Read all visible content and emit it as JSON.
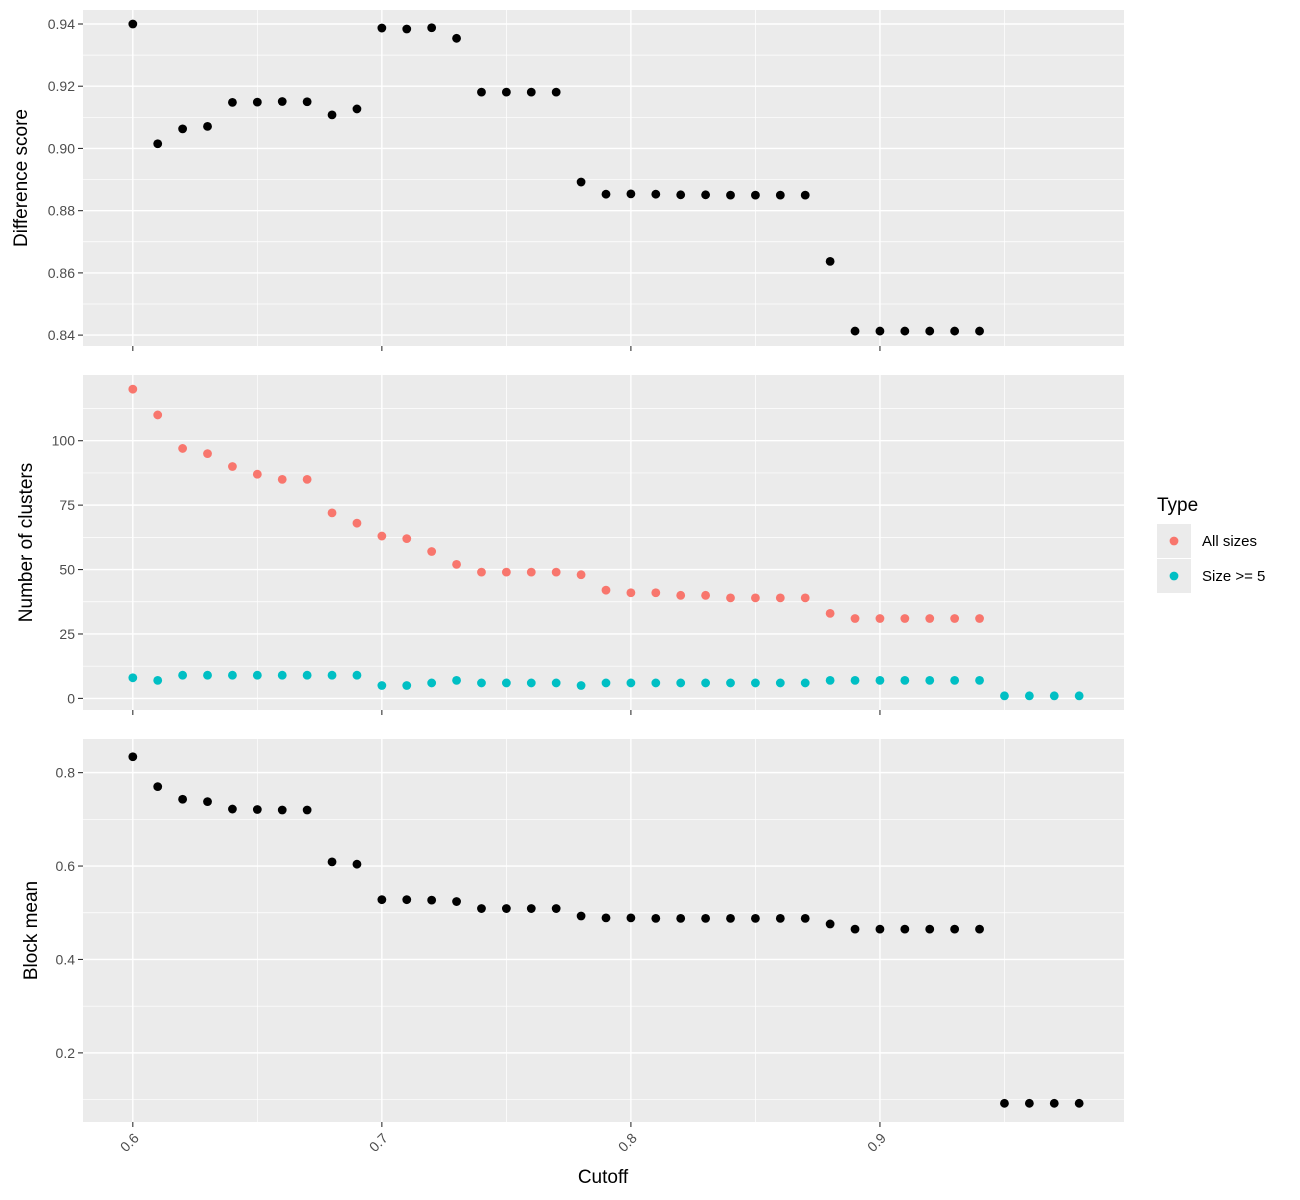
{
  "chart_data": [
    {
      "type": "scatter",
      "panel": "top",
      "ylabel": "Difference score",
      "xlim": [
        0.58,
        0.998
      ],
      "ylim": [
        0.8365,
        0.9445
      ],
      "yticks": [
        0.84,
        0.86,
        0.88,
        0.9,
        0.92,
        0.94
      ],
      "ytick_labels": [
        "0.84",
        "0.86",
        "0.88",
        "0.90",
        "0.92",
        "0.94"
      ],
      "color": "#000000",
      "points": [
        [
          0.6,
          0.94
        ],
        [
          0.61,
          0.9015
        ],
        [
          0.62,
          0.9063
        ],
        [
          0.63,
          0.9071
        ],
        [
          0.64,
          0.9148
        ],
        [
          0.65,
          0.9149
        ],
        [
          0.66,
          0.9151
        ],
        [
          0.67,
          0.915
        ],
        [
          0.68,
          0.9108
        ],
        [
          0.69,
          0.9127
        ],
        [
          0.7,
          0.9387
        ],
        [
          0.71,
          0.9384
        ],
        [
          0.72,
          0.9388
        ],
        [
          0.73,
          0.9354
        ],
        [
          0.74,
          0.9181
        ],
        [
          0.75,
          0.9181
        ],
        [
          0.76,
          0.9181
        ],
        [
          0.77,
          0.9181
        ],
        [
          0.78,
          0.8892
        ],
        [
          0.79,
          0.8853
        ],
        [
          0.8,
          0.8854
        ],
        [
          0.81,
          0.8853
        ],
        [
          0.82,
          0.8851
        ],
        [
          0.83,
          0.8851
        ],
        [
          0.84,
          0.885
        ],
        [
          0.85,
          0.885
        ],
        [
          0.86,
          0.885
        ],
        [
          0.87,
          0.885
        ],
        [
          0.88,
          0.8637
        ],
        [
          0.89,
          0.8413
        ],
        [
          0.9,
          0.8413
        ],
        [
          0.91,
          0.8413
        ],
        [
          0.92,
          0.8413
        ],
        [
          0.93,
          0.8413
        ],
        [
          0.94,
          0.8413
        ]
      ]
    },
    {
      "type": "scatter",
      "panel": "middle",
      "ylabel": "Number of clusters",
      "xlim": [
        0.58,
        0.998
      ],
      "ylim": [
        -4.5,
        125.5
      ],
      "yticks": [
        0,
        25,
        50,
        75,
        100
      ],
      "ytick_labels": [
        "0",
        "25",
        "50",
        "75",
        "100"
      ],
      "series": [
        {
          "name": "All sizes",
          "color": "#f8766d",
          "points": [
            [
              0.6,
              120
            ],
            [
              0.61,
              110
            ],
            [
              0.62,
              97
            ],
            [
              0.63,
              95
            ],
            [
              0.64,
              90
            ],
            [
              0.65,
              87
            ],
            [
              0.66,
              85
            ],
            [
              0.67,
              85
            ],
            [
              0.68,
              72
            ],
            [
              0.69,
              68
            ],
            [
              0.7,
              63
            ],
            [
              0.71,
              62
            ],
            [
              0.72,
              57
            ],
            [
              0.73,
              52
            ],
            [
              0.74,
              49
            ],
            [
              0.75,
              49
            ],
            [
              0.76,
              49
            ],
            [
              0.77,
              49
            ],
            [
              0.78,
              48
            ],
            [
              0.79,
              42
            ],
            [
              0.8,
              41
            ],
            [
              0.81,
              41
            ],
            [
              0.82,
              40
            ],
            [
              0.83,
              40
            ],
            [
              0.84,
              39
            ],
            [
              0.85,
              39
            ],
            [
              0.86,
              39
            ],
            [
              0.87,
              39
            ],
            [
              0.88,
              33
            ],
            [
              0.89,
              31
            ],
            [
              0.9,
              31
            ],
            [
              0.91,
              31
            ],
            [
              0.92,
              31
            ],
            [
              0.93,
              31
            ],
            [
              0.94,
              31
            ]
          ]
        },
        {
          "name": "Size >= 5",
          "color": "#00bfc4",
          "points": [
            [
              0.6,
              8
            ],
            [
              0.61,
              7
            ],
            [
              0.62,
              9
            ],
            [
              0.63,
              9
            ],
            [
              0.64,
              9
            ],
            [
              0.65,
              9
            ],
            [
              0.66,
              9
            ],
            [
              0.67,
              9
            ],
            [
              0.68,
              9
            ],
            [
              0.69,
              9
            ],
            [
              0.7,
              5
            ],
            [
              0.71,
              5
            ],
            [
              0.72,
              6
            ],
            [
              0.73,
              7
            ],
            [
              0.74,
              6
            ],
            [
              0.75,
              6
            ],
            [
              0.76,
              6
            ],
            [
              0.77,
              6
            ],
            [
              0.78,
              5
            ],
            [
              0.79,
              6
            ],
            [
              0.8,
              6
            ],
            [
              0.81,
              6
            ],
            [
              0.82,
              6
            ],
            [
              0.83,
              6
            ],
            [
              0.84,
              6
            ],
            [
              0.85,
              6
            ],
            [
              0.86,
              6
            ],
            [
              0.87,
              6
            ],
            [
              0.88,
              7
            ],
            [
              0.89,
              7
            ],
            [
              0.9,
              7
            ],
            [
              0.91,
              7
            ],
            [
              0.92,
              7
            ],
            [
              0.93,
              7
            ],
            [
              0.94,
              7
            ],
            [
              0.95,
              1
            ],
            [
              0.96,
              1
            ],
            [
              0.97,
              1
            ],
            [
              0.98,
              1
            ]
          ]
        }
      ]
    },
    {
      "type": "scatter",
      "panel": "bottom",
      "ylabel": "Block mean",
      "xlabel": "Cutoff",
      "xlim": [
        0.58,
        0.998
      ],
      "ylim": [
        0.052,
        0.872
      ],
      "yticks": [
        0.2,
        0.4,
        0.6,
        0.8
      ],
      "ytick_labels": [
        "0.2",
        "0.4",
        "0.6",
        "0.8"
      ],
      "color": "#000000",
      "points": [
        [
          0.6,
          0.834
        ],
        [
          0.61,
          0.77
        ],
        [
          0.62,
          0.743
        ],
        [
          0.63,
          0.738
        ],
        [
          0.64,
          0.722
        ],
        [
          0.65,
          0.721
        ],
        [
          0.66,
          0.72
        ],
        [
          0.67,
          0.72
        ],
        [
          0.68,
          0.609
        ],
        [
          0.69,
          0.604
        ],
        [
          0.7,
          0.528
        ],
        [
          0.71,
          0.528
        ],
        [
          0.72,
          0.527
        ],
        [
          0.73,
          0.524
        ],
        [
          0.74,
          0.509
        ],
        [
          0.75,
          0.509
        ],
        [
          0.76,
          0.509
        ],
        [
          0.77,
          0.509
        ],
        [
          0.78,
          0.493
        ],
        [
          0.79,
          0.489
        ],
        [
          0.8,
          0.489
        ],
        [
          0.81,
          0.488
        ],
        [
          0.82,
          0.488
        ],
        [
          0.83,
          0.488
        ],
        [
          0.84,
          0.488
        ],
        [
          0.85,
          0.488
        ],
        [
          0.86,
          0.488
        ],
        [
          0.87,
          0.488
        ],
        [
          0.88,
          0.476
        ],
        [
          0.89,
          0.465
        ],
        [
          0.9,
          0.465
        ],
        [
          0.91,
          0.465
        ],
        [
          0.92,
          0.465
        ],
        [
          0.93,
          0.465
        ],
        [
          0.94,
          0.465
        ],
        [
          0.95,
          0.092
        ],
        [
          0.96,
          0.092
        ],
        [
          0.97,
          0.092
        ],
        [
          0.98,
          0.092
        ]
      ]
    }
  ],
  "x_axis": {
    "ticks": [
      0.6,
      0.7,
      0.8,
      0.9
    ],
    "tick_labels": [
      "0.6",
      "0.7",
      "0.8",
      "0.9"
    ],
    "label": "Cutoff"
  },
  "legend": {
    "title": "Type",
    "items": [
      {
        "label": "All sizes",
        "color": "#f8766d"
      },
      {
        "label": "Size >= 5",
        "color": "#00bfc4"
      }
    ]
  }
}
